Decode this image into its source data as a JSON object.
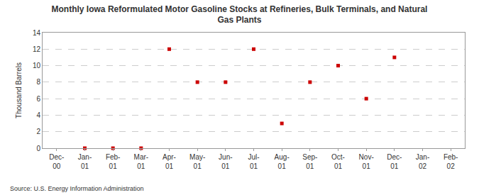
{
  "chart_data": {
    "type": "scatter",
    "title": "Monthly Iowa Reformulated Motor Gasoline Stocks at Refineries, Bulk Terminals, and Natural Gas Plants",
    "ylabel": "Thousand Barrels",
    "annotations": [
      "Source: U.S. Energy Information Administration"
    ],
    "categories": [
      "Dec-00",
      "Jan-01",
      "Feb-01",
      "Mar-01",
      "Apr-01",
      "May-01",
      "Jun-01",
      "Jul-01",
      "Aug-01",
      "Sep-01",
      "Oct-01",
      "Nov-01",
      "Dec-01",
      "Jan-02",
      "Feb-02"
    ],
    "values": [
      null,
      0,
      0,
      0,
      12,
      8,
      8,
      12,
      3,
      8,
      10,
      6,
      11,
      null,
      null
    ],
    "color": "#cc0000",
    "marker": "square",
    "ylim": [
      0,
      14
    ],
    "yticks": [
      0,
      2,
      4,
      6,
      8,
      10,
      12,
      14
    ],
    "grid": true
  }
}
